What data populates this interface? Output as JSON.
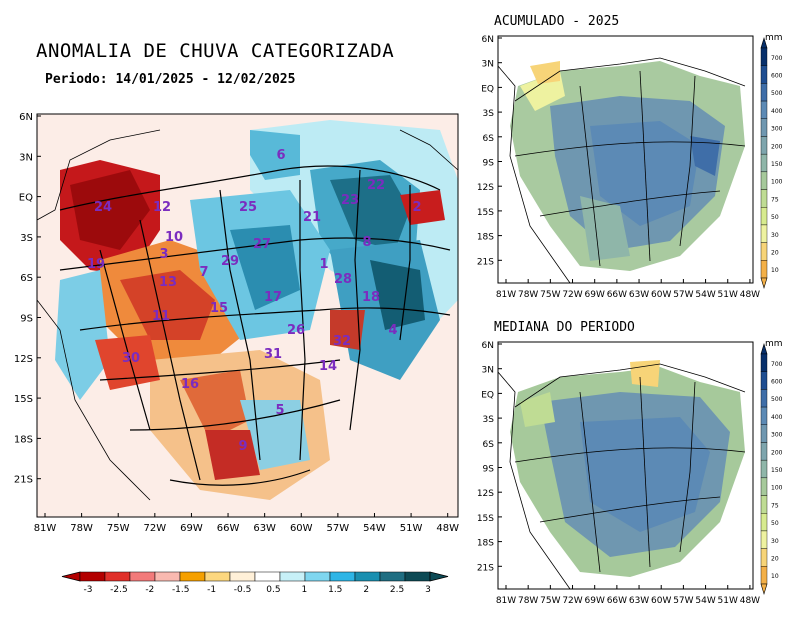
{
  "main_map": {
    "title": "ANOMALIA DE CHUVA CATEGORIZADA",
    "period": "Periodo: 14/01/2025 - 12/02/2025",
    "lat_labels": [
      "6N",
      "3N",
      "EQ",
      "3S",
      "6S",
      "9S",
      "12S",
      "15S",
      "18S",
      "21S"
    ],
    "lon_labels": [
      "81W",
      "78W",
      "75W",
      "72W",
      "69W",
      "66W",
      "63W",
      "60W",
      "57W",
      "54W",
      "51W",
      "48W"
    ],
    "basin_numbers": [
      {
        "n": "6"
      },
      {
        "n": "22"
      },
      {
        "n": "23"
      },
      {
        "n": "24"
      },
      {
        "n": "12"
      },
      {
        "n": "25"
      },
      {
        "n": "21"
      },
      {
        "n": "2"
      },
      {
        "n": "10"
      },
      {
        "n": "3"
      },
      {
        "n": "27"
      },
      {
        "n": "29"
      },
      {
        "n": "8"
      },
      {
        "n": "7"
      },
      {
        "n": "1"
      },
      {
        "n": "28"
      },
      {
        "n": "13"
      },
      {
        "n": "17"
      },
      {
        "n": "18"
      },
      {
        "n": "11"
      },
      {
        "n": "15"
      },
      {
        "n": "26"
      },
      {
        "n": "4"
      },
      {
        "n": "32"
      },
      {
        "n": "30"
      },
      {
        "n": "31"
      },
      {
        "n": "14"
      },
      {
        "n": "16"
      },
      {
        "n": "5"
      },
      {
        "n": "9"
      },
      {
        "n": "19"
      }
    ]
  },
  "colorbar_main": {
    "labels": [
      "-3",
      "-2.5",
      "-2",
      "-1.5",
      "-1",
      "-0.5",
      "0.5",
      "1",
      "1.5",
      "2",
      "2.5",
      "3"
    ],
    "colors": [
      "#b30000",
      "#e0302a",
      "#f27a7a",
      "#f9b9b0",
      "#f5a000",
      "#fcd77f",
      "#fff0d8",
      "#ffffff",
      "#c7f0f7",
      "#7fd6ef",
      "#2eb5e6",
      "#1a8fb0",
      "#1f6e82",
      "#0d4a55"
    ]
  },
  "map_accum": {
    "title": "ACUMULADO - 2025",
    "lat_labels": [
      "6N",
      "3N",
      "EQ",
      "3S",
      "6S",
      "9S",
      "12S",
      "15S",
      "18S",
      "21S"
    ],
    "lon_labels": [
      "81W",
      "78W",
      "75W",
      "72W",
      "69W",
      "66W",
      "63W",
      "60W",
      "57W",
      "54W",
      "51W",
      "48W"
    ]
  },
  "map_median": {
    "title": "MEDIANA DO PERIODO",
    "lat_labels": [
      "6N",
      "3N",
      "EQ",
      "3S",
      "6S",
      "9S",
      "12S",
      "15S",
      "18S",
      "21S"
    ],
    "lon_labels": [
      "81W",
      "78W",
      "75W",
      "72W",
      "69W",
      "66W",
      "63W",
      "60W",
      "57W",
      "54W",
      "51W",
      "48W"
    ]
  },
  "colorbar_mm": {
    "unit": "mm",
    "labels": [
      "700",
      "600",
      "500",
      "400",
      "300",
      "200",
      "150",
      "100",
      "75",
      "50",
      "30",
      "20",
      "10"
    ],
    "colors": [
      "#08306b",
      "#1f4e91",
      "#3f6ea8",
      "#5c8ab5",
      "#6f97b0",
      "#7ea5ad",
      "#8fb6a9",
      "#a6c99b",
      "#bfdc94",
      "#d7eb8f",
      "#eef2a0",
      "#f7d478",
      "#f3b048"
    ]
  }
}
